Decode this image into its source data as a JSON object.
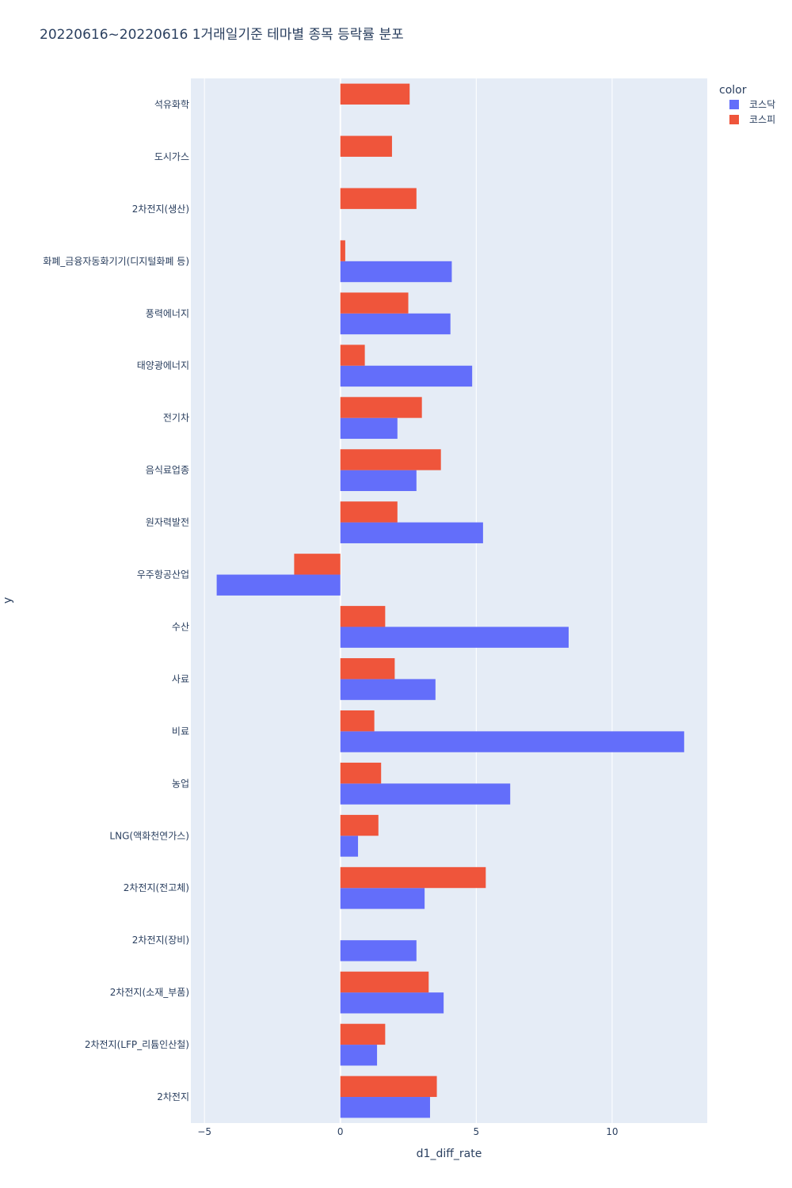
{
  "chart_data": {
    "type": "bar",
    "orientation": "horizontal",
    "barmode": "group",
    "title": "20220616~20220616 1거래일기준 테마별 종목 등락률 분포",
    "xlabel": "d1_diff_rate",
    "ylabel": "y",
    "xlim": [
      -5.5,
      13.5
    ],
    "xticks": [
      -5,
      0,
      5,
      10
    ],
    "grid": true,
    "legend": {
      "title": "color",
      "placement": "top-right"
    },
    "categories": [
      "석유화학",
      "도시가스",
      "2차전지(생산)",
      "화폐_금융자동화기기(디지털화폐 등)",
      "풍력에너지",
      "태양광에너지",
      "전기차",
      "음식료업종",
      "원자력발전",
      "우주항공산업",
      "수산",
      "사료",
      "비료",
      "농업",
      "LNG(액화천연가스)",
      "2차전지(전고체)",
      "2차전지(장비)",
      "2차전지(소재_부품)",
      "2차전지(LFP_리튬인산철)",
      "2차전지"
    ],
    "series": [
      {
        "name": "코스닥",
        "color": "#636efa",
        "values": [
          null,
          null,
          null,
          4.1,
          4.05,
          4.85,
          2.1,
          2.8,
          5.25,
          -4.55,
          8.4,
          3.5,
          12.65,
          6.25,
          0.65,
          3.1,
          2.8,
          3.8,
          1.35,
          3.3
        ]
      },
      {
        "name": "코스피",
        "color": "#ef553b",
        "values": [
          2.55,
          1.9,
          2.8,
          0.18,
          2.5,
          0.9,
          3.0,
          3.7,
          2.1,
          -1.7,
          1.65,
          2.0,
          1.25,
          1.5,
          1.4,
          5.35,
          null,
          3.25,
          1.65,
          3.55
        ]
      }
    ]
  }
}
